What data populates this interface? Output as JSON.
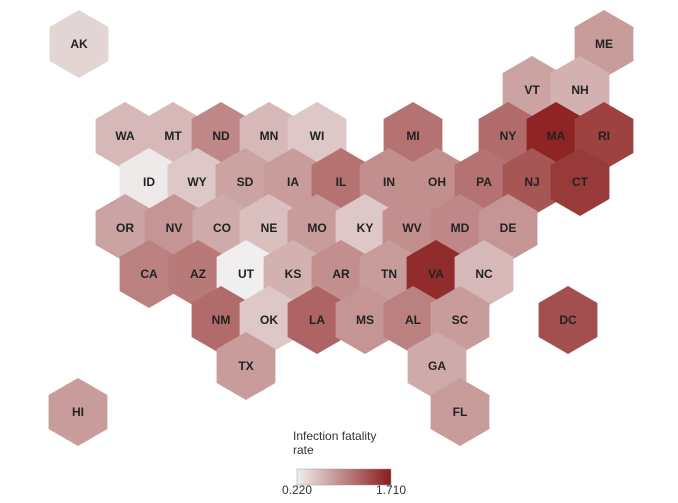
{
  "legend": {
    "title": "Infection fatality rate",
    "range": [
      0.22,
      1.71
    ],
    "colors": [
      "#f0eeee",
      "#8b1c1c"
    ],
    "ticks": [
      {
        "value": 0.22,
        "label": "0.220"
      },
      {
        "value": 1.71,
        "label": "1.710"
      }
    ]
  },
  "states": [
    {
      "label": "AK",
      "value": 0.4
    },
    {
      "label": "ME",
      "value": 0.8
    },
    {
      "label": "VT",
      "value": 0.75
    },
    {
      "label": "NH",
      "value": 0.65
    },
    {
      "label": "WA",
      "value": 0.6
    },
    {
      "label": "MT",
      "value": 0.6
    },
    {
      "label": "ND",
      "value": 0.95
    },
    {
      "label": "MN",
      "value": 0.6
    },
    {
      "label": "WI",
      "value": 0.5
    },
    {
      "label": "MI",
      "value": 1.1
    },
    {
      "label": "NY",
      "value": 1.15
    },
    {
      "label": "MA",
      "value": 1.65
    },
    {
      "label": "RI",
      "value": 1.45
    },
    {
      "label": "ID",
      "value": 0.25
    },
    {
      "label": "WY",
      "value": 0.5
    },
    {
      "label": "SD",
      "value": 0.75
    },
    {
      "label": "IA",
      "value": 0.8
    },
    {
      "label": "IL",
      "value": 1.1
    },
    {
      "label": "IN",
      "value": 0.9
    },
    {
      "label": "OH",
      "value": 0.9
    },
    {
      "label": "PA",
      "value": 1.1
    },
    {
      "label": "NJ",
      "value": 1.3
    },
    {
      "label": "CT",
      "value": 1.5
    },
    {
      "label": "OR",
      "value": 0.75
    },
    {
      "label": "NV",
      "value": 0.85
    },
    {
      "label": "CO",
      "value": 0.7
    },
    {
      "label": "NE",
      "value": 0.55
    },
    {
      "label": "MO",
      "value": 0.8
    },
    {
      "label": "KY",
      "value": 0.5
    },
    {
      "label": "WV",
      "value": 0.9
    },
    {
      "label": "MD",
      "value": 0.95
    },
    {
      "label": "DE",
      "value": 0.85
    },
    {
      "label": "CA",
      "value": 1.0
    },
    {
      "label": "AZ",
      "value": 1.05
    },
    {
      "label": "UT",
      "value": 0.22
    },
    {
      "label": "KS",
      "value": 0.65
    },
    {
      "label": "AR",
      "value": 0.9
    },
    {
      "label": "TN",
      "value": 0.8
    },
    {
      "label": "VA",
      "value": 1.6
    },
    {
      "label": "NC",
      "value": 0.6
    },
    {
      "label": "NM",
      "value": 1.15
    },
    {
      "label": "OK",
      "value": 0.5
    },
    {
      "label": "LA",
      "value": 1.2
    },
    {
      "label": "MS",
      "value": 0.85
    },
    {
      "label": "AL",
      "value": 1.0
    },
    {
      "label": "SC",
      "value": 0.8
    },
    {
      "label": "DC",
      "value": 1.35
    },
    {
      "label": "TX",
      "value": 0.8
    },
    {
      "label": "GA",
      "value": 0.7
    },
    {
      "label": "HI",
      "value": 0.8
    },
    {
      "label": "FL",
      "value": 0.8
    }
  ]
}
